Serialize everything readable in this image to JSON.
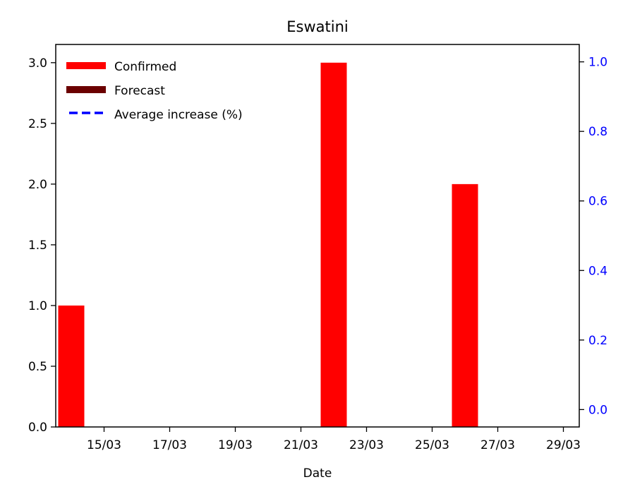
{
  "chart_data": {
    "type": "bar",
    "title": "Eswatini",
    "xlabel": "Date",
    "ylabel": "",
    "ylim": [
      0,
      3.15
    ],
    "y2lim": [
      -0.05,
      1.05
    ],
    "x_ticks": [
      "15/03",
      "17/03",
      "19/03",
      "21/03",
      "23/03",
      "25/03",
      "27/03",
      "29/03"
    ],
    "y_ticks": [
      "0.0",
      "0.5",
      "1.0",
      "1.5",
      "2.0",
      "2.5",
      "3.0"
    ],
    "y2_ticks": [
      "0.0",
      "0.2",
      "0.4",
      "0.6",
      "0.8",
      "1.0"
    ],
    "grid": false,
    "legend_position": "top-left",
    "legend": [
      "Confirmed",
      "Forecast",
      "Average increase (%)"
    ],
    "series": [
      {
        "name": "Confirmed",
        "color": "#ff0000",
        "x": [
          "14/03",
          "15/03",
          "16/03",
          "17/03",
          "18/03",
          "19/03",
          "20/03",
          "21/03",
          "22/03",
          "23/03",
          "24/03",
          "25/03",
          "26/03",
          "27/03",
          "28/03",
          "29/03"
        ],
        "values": [
          1,
          0,
          0,
          0,
          0,
          0,
          0,
          0,
          3,
          0,
          0,
          0,
          2,
          0,
          0,
          0
        ]
      },
      {
        "name": "Forecast",
        "color": "#6b0000",
        "x": [],
        "values": []
      },
      {
        "name": "Average increase (%)",
        "color": "#0000ff",
        "style": "dashed",
        "axis": "right",
        "x": [],
        "values": []
      }
    ]
  }
}
